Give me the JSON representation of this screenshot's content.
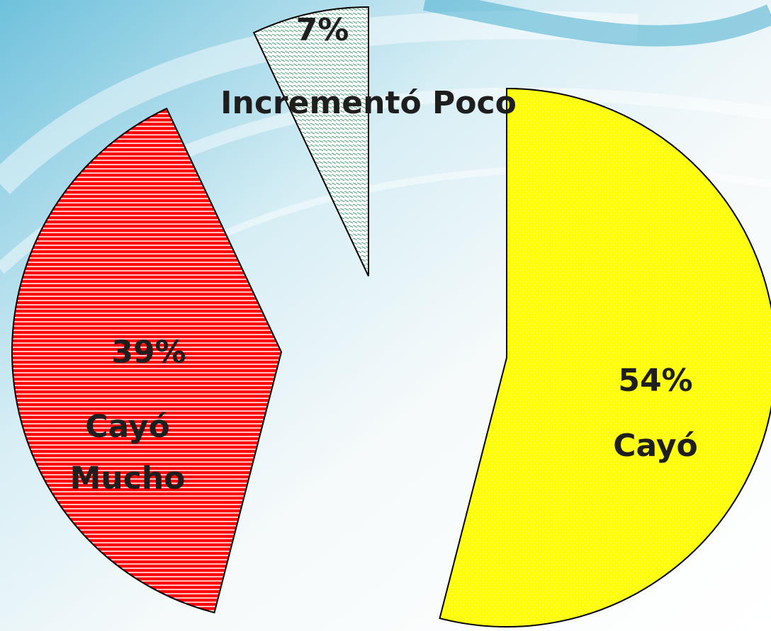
{
  "chart_data": {
    "type": "pie",
    "categories": [
      "Cayó",
      "Cayó Mucho",
      "Incrementó Poco"
    ],
    "values": [
      54,
      39,
      7
    ],
    "value_labels": [
      "54%",
      "39%",
      "7%"
    ],
    "colors": [
      "#ffff00",
      "#ff0000",
      "#ffffff"
    ],
    "start_angle": 0,
    "direction": "clockwise",
    "exploded": true
  }
}
